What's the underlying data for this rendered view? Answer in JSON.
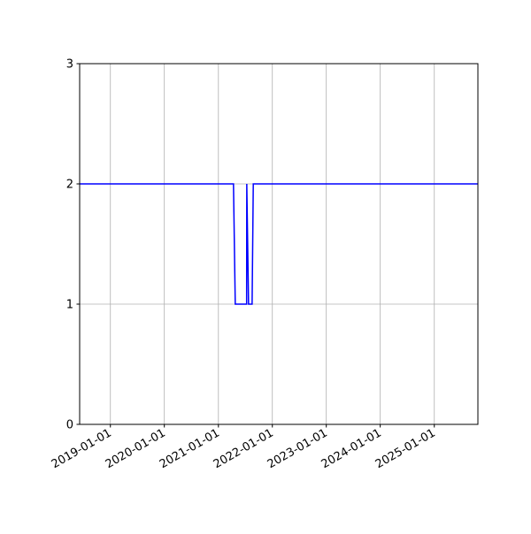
{
  "chart_data": {
    "type": "line",
    "title": "",
    "xlabel": "",
    "ylabel": "",
    "x_type": "date",
    "xlim": [
      "2018-06-07",
      "2025-10-23"
    ],
    "ylim": [
      0,
      3
    ],
    "grid": true,
    "x_ticks": [
      "2019-01-01",
      "2020-01-01",
      "2021-01-01",
      "2022-01-01",
      "2023-01-01",
      "2024-01-01",
      "2025-01-01"
    ],
    "y_ticks": [
      0,
      1,
      2,
      3
    ],
    "y_tick_labels": [
      "0",
      "1",
      "2",
      "3"
    ],
    "series": [
      {
        "color": "#0000ff",
        "x": [
          "2018-06-07",
          "2021-04-13",
          "2021-04-25",
          "2021-07-11",
          "2021-07-12",
          "2021-07-24",
          "2021-08-17",
          "2021-08-25",
          "2025-10-23"
        ],
        "y": [
          2,
          2,
          1,
          1,
          2,
          1,
          1,
          2,
          2
        ]
      }
    ]
  }
}
